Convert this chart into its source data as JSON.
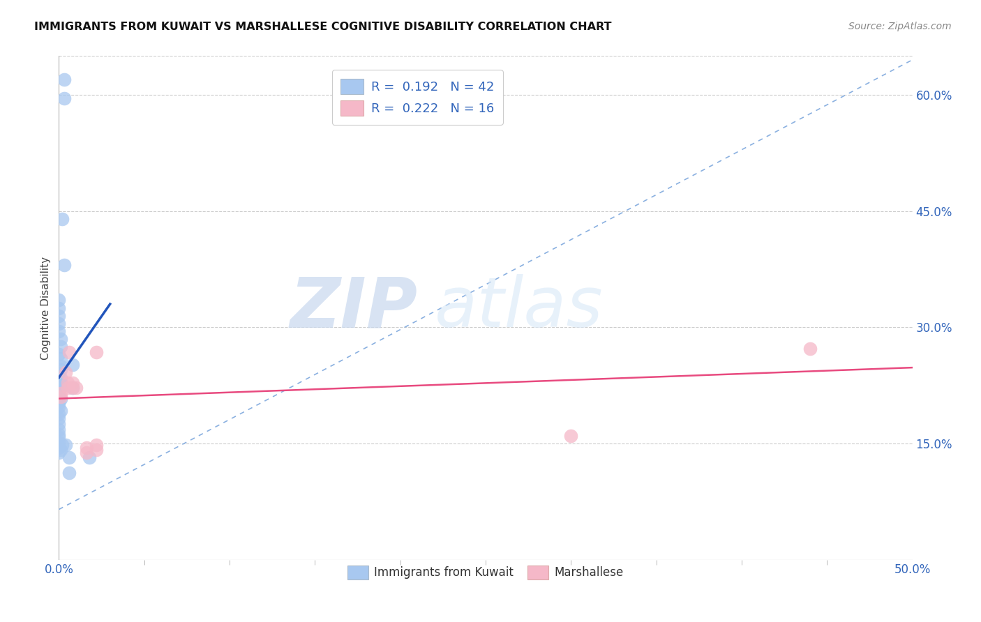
{
  "title": "IMMIGRANTS FROM KUWAIT VS MARSHALLESE COGNITIVE DISABILITY CORRELATION CHART",
  "source": "Source: ZipAtlas.com",
  "ylabel": "Cognitive Disability",
  "xlim": [
    0.0,
    0.5
  ],
  "ylim": [
    0.0,
    0.65
  ],
  "xtick_vals": [
    0.0,
    0.5
  ],
  "xtick_labels": [
    "0.0%",
    "50.0%"
  ],
  "yticks_right": [
    0.15,
    0.3,
    0.45,
    0.6
  ],
  "ytick_labels_right": [
    "15.0%",
    "30.0%",
    "45.0%",
    "60.0%"
  ],
  "kuwait_R": "0.192",
  "kuwait_N": "42",
  "marshall_R": "0.222",
  "marshall_N": "16",
  "kuwait_color": "#a8c8f0",
  "marshall_color": "#f5b8c8",
  "kuwait_line_color": "#2255bb",
  "marshall_line_color": "#e84a7f",
  "dashed_line_color": "#8ab0e0",
  "watermark_zip": "ZIP",
  "watermark_atlas": "atlas",
  "kuwait_scatter": [
    [
      0.003,
      0.62
    ],
    [
      0.003,
      0.595
    ],
    [
      0.002,
      0.44
    ],
    [
      0.003,
      0.38
    ],
    [
      0.0,
      0.335
    ],
    [
      0.0,
      0.325
    ],
    [
      0.0,
      0.315
    ],
    [
      0.0,
      0.305
    ],
    [
      0.0,
      0.295
    ],
    [
      0.001,
      0.285
    ],
    [
      0.001,
      0.275
    ],
    [
      0.0,
      0.265
    ],
    [
      0.001,
      0.26
    ],
    [
      0.001,
      0.25
    ],
    [
      0.001,
      0.245
    ],
    [
      0.0,
      0.24
    ],
    [
      0.001,
      0.235
    ],
    [
      0.001,
      0.228
    ],
    [
      0.001,
      0.222
    ],
    [
      0.0,
      0.218
    ],
    [
      0.0,
      0.212
    ],
    [
      0.001,
      0.208
    ],
    [
      0.0,
      0.202
    ],
    [
      0.0,
      0.198
    ],
    [
      0.001,
      0.192
    ],
    [
      0.0,
      0.188
    ],
    [
      0.0,
      0.182
    ],
    [
      0.0,
      0.175
    ],
    [
      0.0,
      0.168
    ],
    [
      0.0,
      0.162
    ],
    [
      0.0,
      0.158
    ],
    [
      0.0,
      0.152
    ],
    [
      0.0,
      0.145
    ],
    [
      0.0,
      0.138
    ],
    [
      0.008,
      0.252
    ],
    [
      0.008,
      0.222
    ],
    [
      0.018,
      0.132
    ],
    [
      0.006,
      0.132
    ],
    [
      0.001,
      0.142
    ],
    [
      0.002,
      0.148
    ],
    [
      0.004,
      0.148
    ],
    [
      0.006,
      0.112
    ]
  ],
  "marshall_scatter": [
    [
      0.001,
      0.215
    ],
    [
      0.001,
      0.21
    ],
    [
      0.004,
      0.242
    ],
    [
      0.005,
      0.228
    ],
    [
      0.005,
      0.222
    ],
    [
      0.006,
      0.268
    ],
    [
      0.008,
      0.228
    ],
    [
      0.008,
      0.222
    ],
    [
      0.01,
      0.222
    ],
    [
      0.016,
      0.138
    ],
    [
      0.016,
      0.145
    ],
    [
      0.022,
      0.148
    ],
    [
      0.022,
      0.142
    ],
    [
      0.022,
      0.268
    ],
    [
      0.3,
      0.16
    ],
    [
      0.44,
      0.272
    ]
  ],
  "kuwait_line": [
    [
      0.0,
      0.235
    ],
    [
      0.03,
      0.33
    ]
  ],
  "marshall_line": [
    [
      0.0,
      0.208
    ],
    [
      0.5,
      0.248
    ]
  ],
  "dashed_line": [
    [
      0.0,
      0.065
    ],
    [
      0.5,
      0.645
    ]
  ]
}
